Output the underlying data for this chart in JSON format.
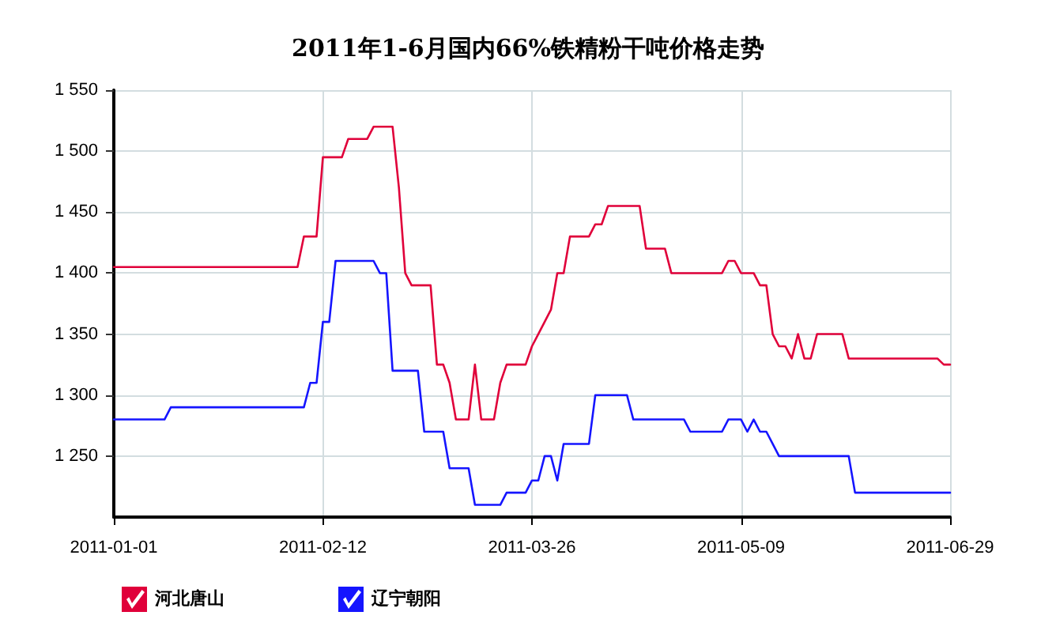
{
  "chart_data": {
    "type": "line",
    "title": "2011年1-6月国内66%铁精粉干吨价格走势",
    "categories": [
      "2011-01-01",
      null,
      null,
      null,
      null,
      null,
      null,
      null,
      null,
      null,
      null,
      null,
      null,
      null,
      null,
      null,
      null,
      null,
      null,
      null,
      null,
      null,
      null,
      null,
      null,
      null,
      null,
      null,
      null,
      null,
      null,
      null,
      null,
      "2011-02-12",
      null,
      null,
      null,
      null,
      null,
      null,
      null,
      null,
      null,
      null,
      null,
      null,
      null,
      null,
      null,
      null,
      null,
      null,
      null,
      null,
      null,
      null,
      null,
      null,
      null,
      null,
      null,
      null,
      null,
      null,
      null,
      null,
      "2011-03-26",
      null,
      null,
      null,
      null,
      null,
      null,
      null,
      null,
      null,
      null,
      null,
      null,
      null,
      null,
      null,
      null,
      null,
      null,
      null,
      null,
      null,
      null,
      null,
      null,
      null,
      null,
      null,
      null,
      null,
      null,
      null,
      null,
      "2011-05-09",
      null,
      null,
      null,
      null,
      null,
      null,
      null,
      null,
      null,
      null,
      null,
      null,
      null,
      null,
      null,
      null,
      null,
      null,
      null,
      null,
      null,
      null,
      null,
      null,
      null,
      null,
      null,
      null,
      null,
      null,
      null,
      null,
      "2011-06-29"
    ],
    "series": [
      {
        "name": "河北唐山",
        "color": "#e0003a",
        "values": [
          1405,
          1405,
          1405,
          1405,
          1405,
          1405,
          1405,
          1405,
          1405,
          1405,
          1405,
          1405,
          1405,
          1405,
          1405,
          1405,
          1405,
          1405,
          1405,
          1405,
          1405,
          1405,
          1405,
          1405,
          1405,
          1405,
          1405,
          1405,
          1405,
          1405,
          1430,
          1430,
          1430,
          1495,
          1495,
          1495,
          1495,
          1510,
          1510,
          1510,
          1510,
          1520,
          1520,
          1520,
          1520,
          1470,
          1400,
          1390,
          1390,
          1390,
          1390,
          1325,
          1325,
          1310,
          1280,
          1280,
          1280,
          1325,
          1280,
          1280,
          1280,
          1310,
          1325,
          1325,
          1325,
          1325,
          1340,
          1350,
          1360,
          1370,
          1400,
          1400,
          1430,
          1430,
          1430,
          1430,
          1440,
          1440,
          1455,
          1455,
          1455,
          1455,
          1455,
          1455,
          1420,
          1420,
          1420,
          1420,
          1400,
          1400,
          1400,
          1400,
          1400,
          1400,
          1400,
          1400,
          1400,
          1410,
          1410,
          1400,
          1400,
          1400,
          1390,
          1390,
          1350,
          1340,
          1340,
          1330,
          1350,
          1330,
          1330,
          1350,
          1350,
          1350,
          1350,
          1350,
          1330,
          1330,
          1330,
          1330,
          1330,
          1330,
          1330,
          1330,
          1330,
          1330,
          1330,
          1330,
          1330,
          1330,
          1330,
          1325,
          1325
        ]
      },
      {
        "name": "辽宁朝阳",
        "color": "#1515ff",
        "values": [
          1280,
          1280,
          1280,
          1280,
          1280,
          1280,
          1280,
          1280,
          1280,
          1290,
          1290,
          1290,
          1290,
          1290,
          1290,
          1290,
          1290,
          1290,
          1290,
          1290,
          1290,
          1290,
          1290,
          1290,
          1290,
          1290,
          1290,
          1290,
          1290,
          1290,
          1290,
          1310,
          1310,
          1360,
          1360,
          1410,
          1410,
          1410,
          1410,
          1410,
          1410,
          1410,
          1400,
          1400,
          1320,
          1320,
          1320,
          1320,
          1320,
          1270,
          1270,
          1270,
          1270,
          1240,
          1240,
          1240,
          1240,
          1210,
          1210,
          1210,
          1210,
          1210,
          1220,
          1220,
          1220,
          1220,
          1230,
          1230,
          1250,
          1250,
          1230,
          1260,
          1260,
          1260,
          1260,
          1260,
          1300,
          1300,
          1300,
          1300,
          1300,
          1300,
          1280,
          1280,
          1280,
          1280,
          1280,
          1280,
          1280,
          1280,
          1280,
          1270,
          1270,
          1270,
          1270,
          1270,
          1270,
          1280,
          1280,
          1280,
          1270,
          1280,
          1270,
          1270,
          1260,
          1250,
          1250,
          1250,
          1250,
          1250,
          1250,
          1250,
          1250,
          1250,
          1250,
          1250,
          1250,
          1220,
          1220,
          1220,
          1220,
          1220,
          1220,
          1220,
          1220,
          1220,
          1220,
          1220,
          1220,
          1220,
          1220,
          1220,
          1220
        ]
      }
    ],
    "ylim": [
      1200,
      1550
    ],
    "yticks": [
      {
        "value": 1250,
        "label": "1 250"
      },
      {
        "value": 1300,
        "label": "1 300"
      },
      {
        "value": 1350,
        "label": "1 350"
      },
      {
        "value": 1400,
        "label": "1 400"
      },
      {
        "value": 1450,
        "label": "1 450"
      },
      {
        "value": 1500,
        "label": "1 500"
      },
      {
        "value": 1550,
        "label": "1 550"
      }
    ],
    "grid": true,
    "legend": "bottom left",
    "line_style": "solid"
  }
}
